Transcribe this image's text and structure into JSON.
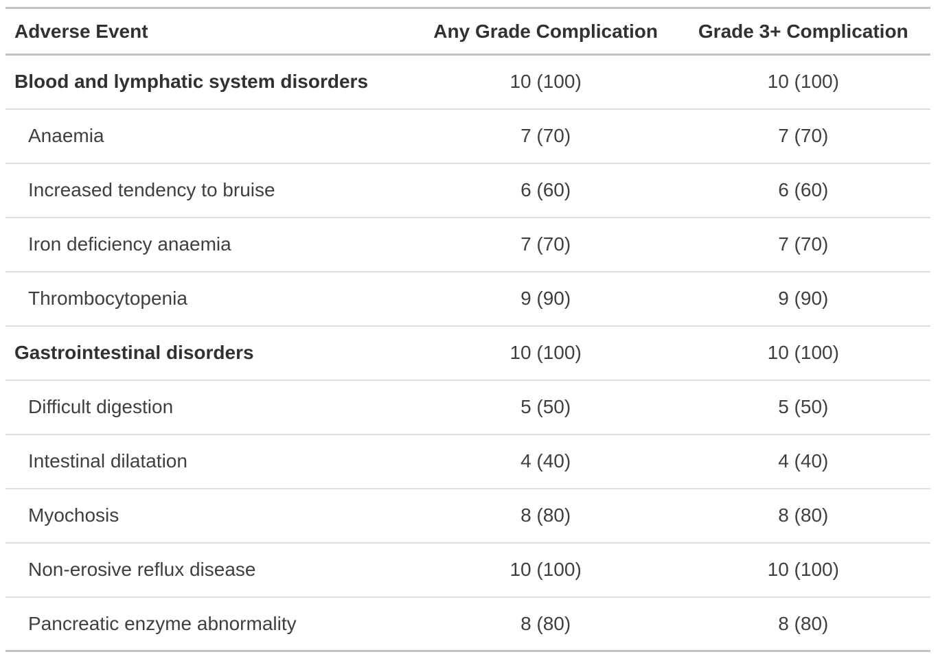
{
  "table": {
    "columns": [
      {
        "label": "Adverse Event"
      },
      {
        "label": "Any Grade Complication"
      },
      {
        "label": "Grade 3+ Complication"
      }
    ],
    "rows": [
      {
        "type": "group",
        "label": "Blood and lymphatic system disorders",
        "any_grade": "10 (100)",
        "grade3plus": "10 (100)"
      },
      {
        "type": "item",
        "label": "Anaemia",
        "any_grade": "7 (70)",
        "grade3plus": "7 (70)"
      },
      {
        "type": "item",
        "label": "Increased tendency to bruise",
        "any_grade": "6 (60)",
        "grade3plus": "6 (60)"
      },
      {
        "type": "item",
        "label": "Iron deficiency anaemia",
        "any_grade": "7 (70)",
        "grade3plus": "7 (70)"
      },
      {
        "type": "item",
        "label": "Thrombocytopenia",
        "any_grade": "9 (90)",
        "grade3plus": "9 (90)"
      },
      {
        "type": "group",
        "label": "Gastrointestinal disorders",
        "any_grade": "10 (100)",
        "grade3plus": "10 (100)"
      },
      {
        "type": "item",
        "label": "Difficult digestion",
        "any_grade": "5 (50)",
        "grade3plus": "5 (50)"
      },
      {
        "type": "item",
        "label": "Intestinal dilatation",
        "any_grade": "4 (40)",
        "grade3plus": "4 (40)"
      },
      {
        "type": "item",
        "label": "Myochosis",
        "any_grade": "8 (80)",
        "grade3plus": "8 (80)"
      },
      {
        "type": "item",
        "label": "Non-erosive reflux disease",
        "any_grade": "10 (100)",
        "grade3plus": "10 (100)"
      },
      {
        "type": "item",
        "label": "Pancreatic enzyme abnormality",
        "any_grade": "8 (80)",
        "grade3plus": "8 (80)"
      }
    ],
    "colors": {
      "text": "#3f3f3f",
      "heading_text": "#313131",
      "border_strong": "#c4c4c4",
      "border_light": "#dedede",
      "background": "#ffffff"
    }
  }
}
